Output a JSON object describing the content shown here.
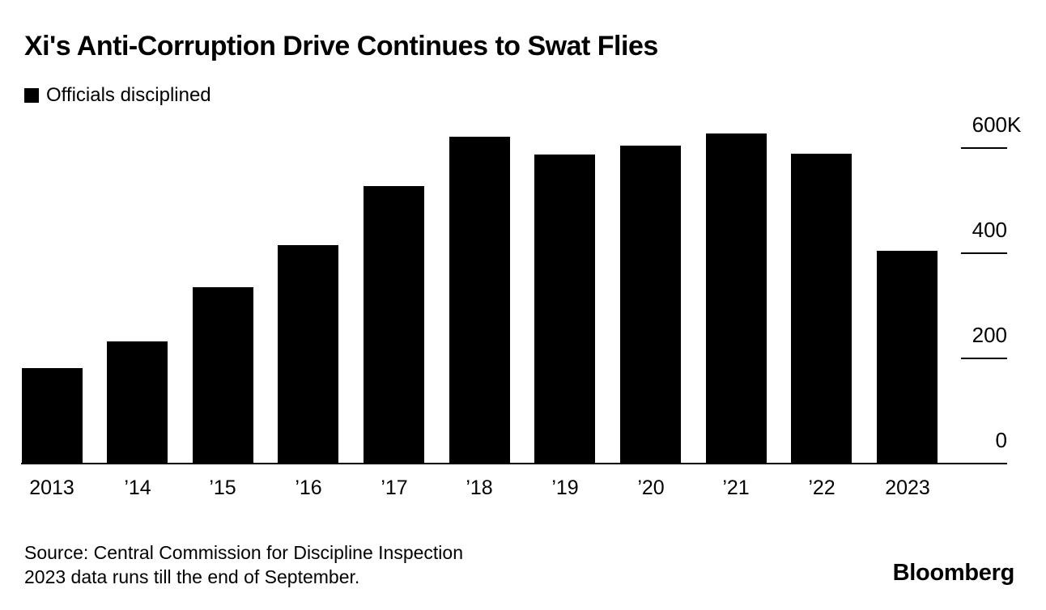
{
  "header": {
    "title": "Xi's Anti-Corruption Drive Continues to Swat Flies"
  },
  "legend": {
    "label": "Officials disciplined",
    "swatch_color": "#000000",
    "position": "top-left"
  },
  "chart_data": {
    "type": "bar",
    "title": "Xi's Anti-Corruption Drive Continues to Swat Flies",
    "series_name": "Officials disciplined",
    "categories": [
      "2013",
      "’14",
      "’15",
      "’16",
      "’17",
      "’18",
      "’19",
      "’20",
      "’21",
      "’22",
      "2023"
    ],
    "values": [
      182,
      232,
      336,
      415,
      527,
      621,
      587,
      604,
      627,
      589,
      405
    ],
    "unit": "thousands of officials",
    "xlabel": "",
    "ylabel": "",
    "y_axis": {
      "side": "right",
      "ylim": [
        0,
        680
      ],
      "tick_interval": 200,
      "ticks": [
        {
          "label": "600K",
          "value": 600
        },
        {
          "label": "400",
          "value": 400
        },
        {
          "label": "200",
          "value": 200
        },
        {
          "label": "0",
          "value": 0
        }
      ]
    },
    "grid": false,
    "bar_color": "#000000",
    "legend_position": "top-left"
  },
  "footer": {
    "source_line1": "Source: Central Commission for Discipline Inspection",
    "source_line2": "2023 data runs till the end of September.",
    "brand": "Bloomberg"
  },
  "colors": {
    "background": "#ffffff",
    "text": "#000000",
    "bar": "#000000",
    "axis": "#000000"
  }
}
